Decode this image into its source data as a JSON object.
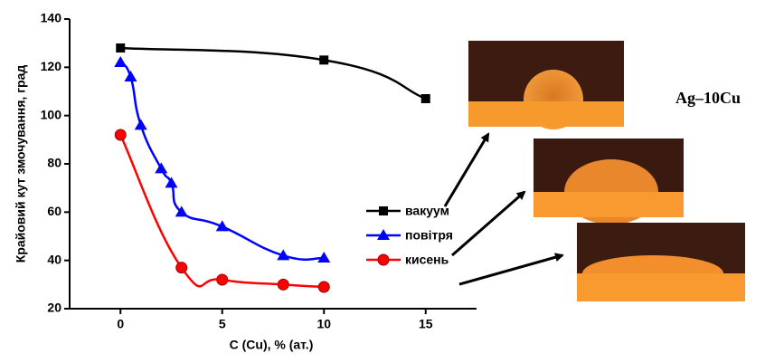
{
  "chart_data": {
    "type": "line",
    "x_label": "C (Cu), % (ат.)",
    "y_label": "Крайовий кут змочування, град",
    "annotation": "Ag–10Cu",
    "xlim": [
      -2.5,
      17.5
    ],
    "xticks": [
      0,
      5,
      10,
      15
    ],
    "ylim": [
      20,
      140
    ],
    "yticks": [
      20,
      40,
      60,
      80,
      100,
      120,
      140
    ],
    "legend": "center-right",
    "series": [
      {
        "name": "вакуум",
        "color": "#000000",
        "marker": "square",
        "x": [
          0,
          10,
          15
        ],
        "values": [
          128,
          123,
          107
        ]
      },
      {
        "name": "повітря",
        "color": "#0000ff",
        "marker": "triangle",
        "x": [
          0,
          0.5,
          1,
          2,
          2.5,
          3,
          5,
          8,
          10
        ],
        "values": [
          122,
          116,
          96,
          78,
          72,
          60,
          54,
          42,
          41
        ]
      },
      {
        "name": "кисень",
        "color": "#ff0000",
        "marker": "circle",
        "x": [
          0,
          3,
          5,
          8,
          10
        ],
        "values": [
          92,
          37,
          32,
          30,
          29
        ]
      }
    ]
  }
}
